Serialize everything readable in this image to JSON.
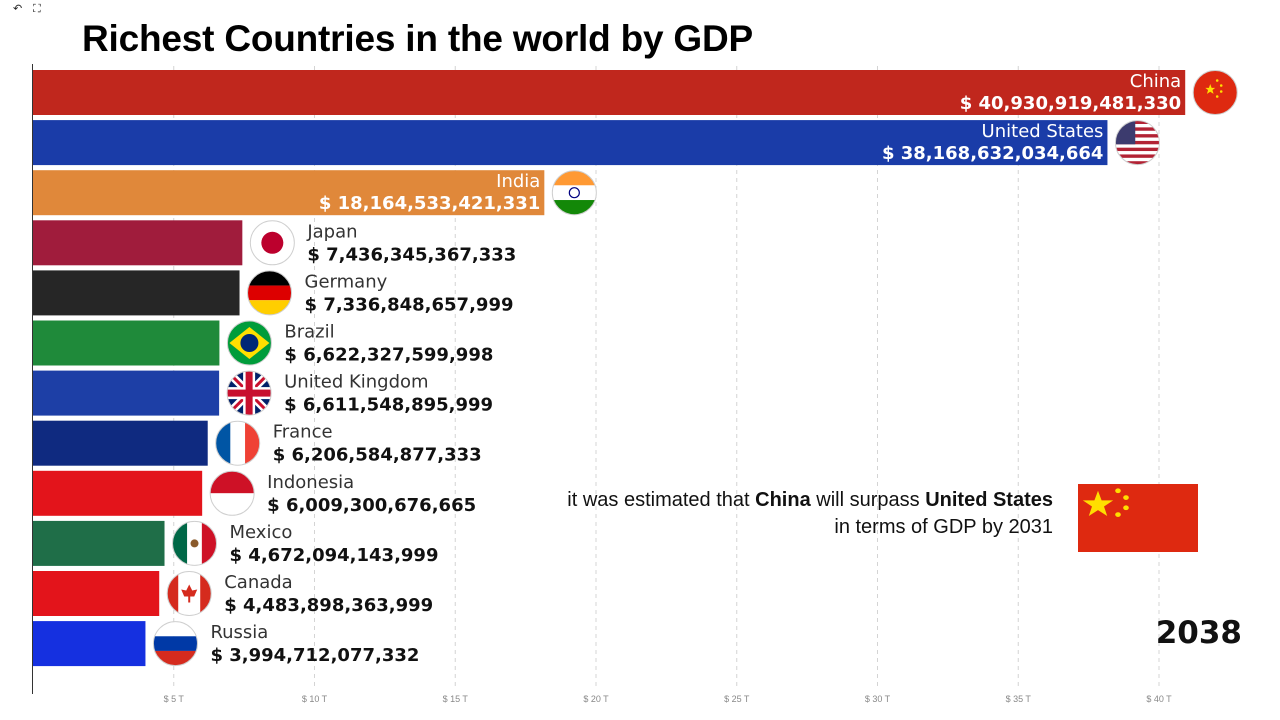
{
  "window": {
    "back_icon": "back-arrow-icon",
    "fullscreen_icon": "fullscreen-icon"
  },
  "title": "Richest Countries in the world by GDP",
  "note": {
    "part1": "it was estimated that ",
    "bold1": "China",
    "part2": " will surpass ",
    "bold2": "United States",
    "part3": " in terms of GDP by 2031",
    "flag": "china-flag"
  },
  "year": "2038",
  "chart_data": {
    "type": "bar",
    "orientation": "horizontal",
    "title": "Richest Countries in the world by GDP",
    "categories": [
      "China",
      "United States",
      "India",
      "Japan",
      "Germany",
      "Brazil",
      "United Kingdom",
      "France",
      "Indonesia",
      "Mexico",
      "Canada",
      "Russia"
    ],
    "values": [
      40930919481330,
      38168632034664,
      18164533421331,
      7436345367333,
      7336848657999,
      6622327599998,
      6611548895999,
      6206584877333,
      6009300676665,
      4672094143999,
      4483898363999,
      3994712077332
    ],
    "value_labels": [
      "$ 40,930,919,481,330",
      "$ 38,168,632,034,664",
      "$ 18,164,533,421,331",
      "$ 7,436,345,367,333",
      "$ 7,336,848,657,999",
      "$ 6,622,327,599,998",
      "$ 6,611,548,895,999",
      "$ 6,206,584,877,333",
      "$ 6,009,300,676,665",
      "$ 4,672,094,143,999",
      "$ 4,483,898,363,999",
      "$ 3,994,712,077,332"
    ],
    "colors": [
      "#c0271d",
      "#1a3ca8",
      "#e0883a",
      "#a01c3c",
      "#262626",
      "#1f8a3a",
      "#1d3fa6",
      "#0f2a80",
      "#e3141b",
      "#1f6e48",
      "#e3141b",
      "#1530e0"
    ],
    "flags": [
      "china",
      "usa",
      "india",
      "japan",
      "germany",
      "brazil",
      "uk",
      "france",
      "indonesia",
      "mexico",
      "canada",
      "russia"
    ],
    "x_ticks": [
      "$ 5 T",
      "$ 10 T",
      "$ 15 T",
      "$ 20 T",
      "$ 25 T",
      "$ 30 T",
      "$ 35 T",
      "$ 40 T"
    ],
    "x_tick_values": [
      5,
      10,
      15,
      20,
      25,
      30,
      35,
      40
    ],
    "xlim": [
      0,
      41
    ],
    "unit": "trillions USD",
    "grid": "vertical dashed",
    "label_position_threshold_trillions": 15
  }
}
